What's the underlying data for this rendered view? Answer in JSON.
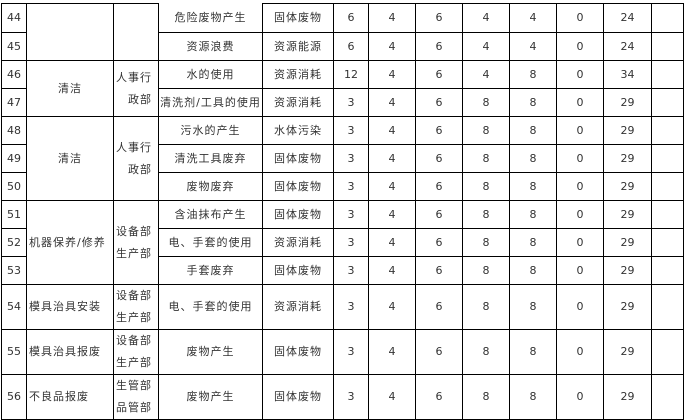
{
  "table": {
    "rows": [
      {
        "no": "44",
        "activity": "",
        "dept": "",
        "aspect": "危险废物产生",
        "impact": "固体废物",
        "scores": [
          "6",
          "4",
          "6",
          "4",
          "4",
          "0",
          "24"
        ],
        "note": ""
      },
      {
        "no": "45",
        "aspect": "资源浪费",
        "impact": "资源能源",
        "scores": [
          "6",
          "4",
          "6",
          "4",
          "4",
          "0",
          "24"
        ],
        "note": ""
      },
      {
        "no": "46",
        "activity": "清洁",
        "dept": "人事行\n政部",
        "aspect": "水的使用",
        "impact": "资源消耗",
        "scores": [
          "12",
          "4",
          "6",
          "4",
          "8",
          "0",
          "34"
        ],
        "note": ""
      },
      {
        "no": "47",
        "aspect": "清洗剂/工具的使用",
        "impact": "资源消耗",
        "scores": [
          "3",
          "4",
          "6",
          "8",
          "8",
          "0",
          "29"
        ],
        "note": ""
      },
      {
        "no": "48",
        "activity": "清洁",
        "dept": "人事行\n政部",
        "aspect": "污水的产生",
        "impact": "水体污染",
        "scores": [
          "3",
          "4",
          "6",
          "8",
          "8",
          "0",
          "29"
        ],
        "note": ""
      },
      {
        "no": "49",
        "aspect": "清洗工具废弃",
        "impact": "固体废物",
        "scores": [
          "3",
          "4",
          "6",
          "8",
          "8",
          "0",
          "29"
        ],
        "note": ""
      },
      {
        "no": "50",
        "aspect": "废物废弃",
        "impact": "固体废物",
        "scores": [
          "3",
          "4",
          "6",
          "8",
          "8",
          "0",
          "29"
        ],
        "note": ""
      },
      {
        "no": "51",
        "activity": "机器保养/修养",
        "dept": "设备部\n生产部",
        "aspect": "含油抹布产生",
        "impact": "固体废物",
        "scores": [
          "3",
          "4",
          "6",
          "8",
          "8",
          "0",
          "29"
        ],
        "note": ""
      },
      {
        "no": "52",
        "aspect": "电、手套的使用",
        "impact": "资源消耗",
        "scores": [
          "3",
          "4",
          "6",
          "8",
          "8",
          "0",
          "29"
        ],
        "note": ""
      },
      {
        "no": "53",
        "aspect": "手套废弃",
        "impact": "固体废物",
        "scores": [
          "3",
          "4",
          "6",
          "8",
          "8",
          "0",
          "29"
        ],
        "note": ""
      },
      {
        "no": "54",
        "activity": "模具治具安装",
        "dept": "设备部\n生产部",
        "aspect": "电、手套的使用",
        "impact": "资源消耗",
        "scores": [
          "3",
          "4",
          "6",
          "8",
          "8",
          "0",
          "29"
        ],
        "note": ""
      },
      {
        "no": "55",
        "activity": "模具治具报废",
        "dept": "设备部\n生产部",
        "aspect": "废物产生",
        "impact": "固体废物",
        "scores": [
          "3",
          "4",
          "6",
          "8",
          "8",
          "0",
          "29"
        ],
        "note": ""
      },
      {
        "no": "56",
        "activity": "不良品报废",
        "dept": "生管部\n品管部",
        "aspect": "废物产生",
        "impact": "固体废物",
        "scores": [
          "3",
          "4",
          "6",
          "8",
          "8",
          "0",
          "29"
        ],
        "note": ""
      }
    ]
  }
}
